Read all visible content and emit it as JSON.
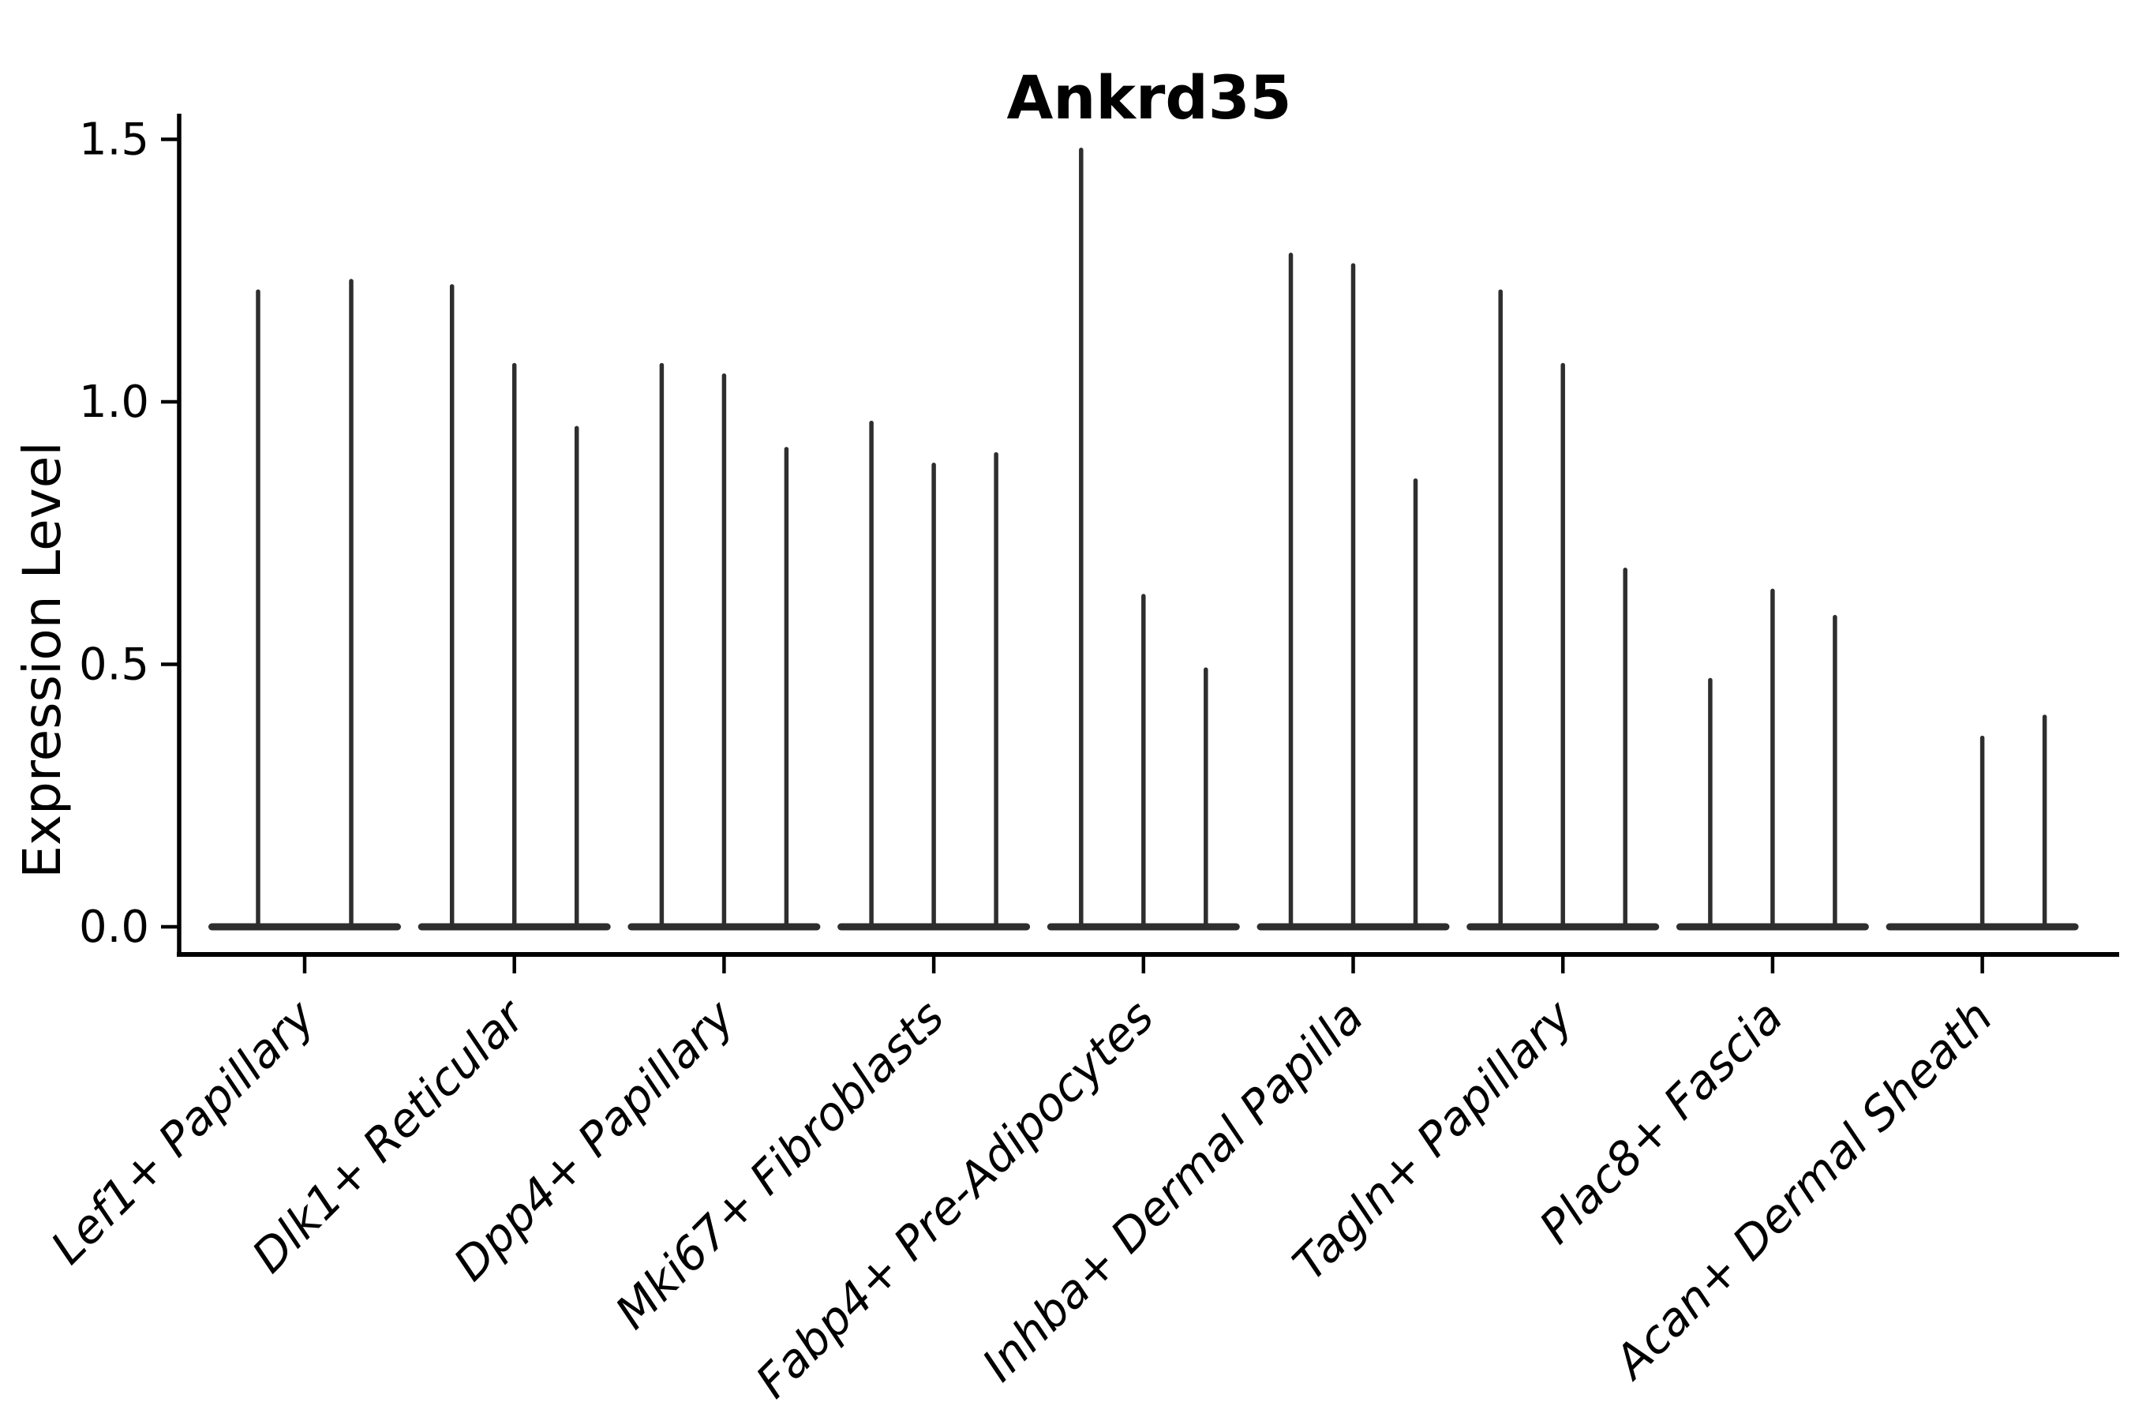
{
  "chart_data": {
    "type": "violin",
    "title": "Ankrd35",
    "ylabel": "Expression Level",
    "xlabel": "",
    "ytick_labels": [
      "0.0",
      "0.5",
      "1.0",
      "1.5"
    ],
    "ytick_values": [
      0.0,
      0.5,
      1.0,
      1.5
    ],
    "ylim": [
      -0.05,
      1.55
    ],
    "grid": false,
    "legend": "none",
    "line_color": "#2e2e2e",
    "axis_color": "#000000",
    "categories": [
      "Lef1+ Papillary",
      "Dlk1+ Reticular",
      "Dpp4+ Papillary",
      "Mki67+ Fibroblasts",
      "Fabp4+ Pre-Adipocytes",
      "Inhba+ Dermal Papilla",
      "Tagln+ Papillary",
      "Plac8+ Fascia",
      "Acan+ Dermal Sheath"
    ],
    "groups": [
      {
        "category": "Lef1+ Papillary",
        "peaks": [
          1.21,
          1.23
        ]
      },
      {
        "category": "Dlk1+ Reticular",
        "peaks": [
          1.22,
          1.07,
          0.95
        ]
      },
      {
        "category": "Dpp4+ Papillary",
        "peaks": [
          1.07,
          1.05,
          0.91
        ]
      },
      {
        "category": "Mki67+ Fibroblasts",
        "peaks": [
          0.96,
          0.88,
          0.9
        ]
      },
      {
        "category": "Fabp4+ Pre-Adipocytes",
        "peaks": [
          1.48,
          0.63,
          0.49
        ]
      },
      {
        "category": "Inhba+ Dermal Papilla",
        "peaks": [
          1.28,
          1.26,
          0.85
        ]
      },
      {
        "category": "Tagln+ Papillary",
        "peaks": [
          1.21,
          1.07,
          0.68
        ]
      },
      {
        "category": "Plac8+ Fascia",
        "peaks": [
          0.47,
          0.64,
          0.59
        ]
      },
      {
        "category": "Acan+ Dermal Sheath",
        "peaks": [
          0.0,
          0.36,
          0.4
        ]
      }
    ]
  }
}
